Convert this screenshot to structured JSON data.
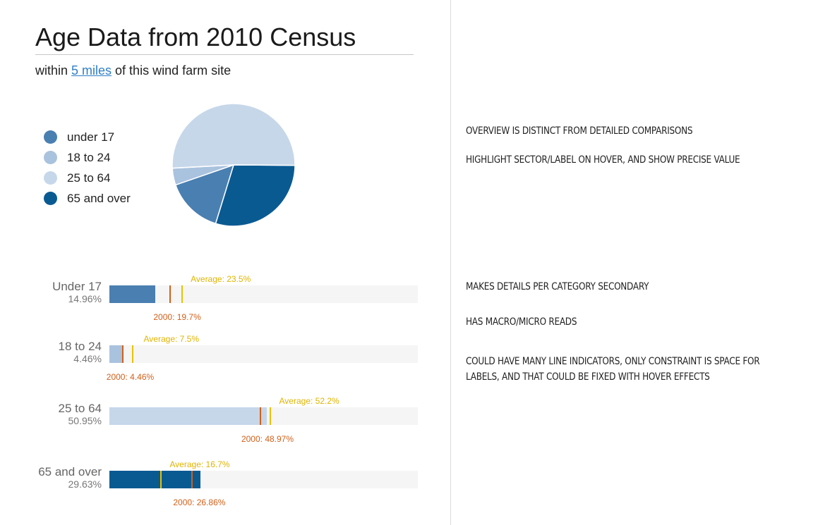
{
  "title": "Age Data from 2010 Census",
  "subtitle": {
    "prefix": "within ",
    "link": "5 miles",
    "suffix": " of this wind farm site"
  },
  "colors": {
    "under_17": "#4a7fb1",
    "18_to_24": "#a9c2de",
    "25_to_64": "#c7d7ea",
    "65_and_over": "#0a5a92",
    "average_marker": "#e8c200",
    "year2000_marker": "#d2601a"
  },
  "chart_data": [
    {
      "type": "pie",
      "title": "",
      "legend": "left",
      "categories": [
        "under 17",
        "18 to 24",
        "25 to 64",
        "65 and over"
      ],
      "values": [
        14.96,
        4.46,
        50.95,
        29.63
      ],
      "colors": [
        "#4a7fb1",
        "#a9c2de",
        "#c7d7ea",
        "#0a5a92"
      ]
    },
    {
      "type": "bar",
      "title": "",
      "xlim": [
        0,
        100
      ],
      "categories": [
        "Under 17",
        "18 to 24",
        "25 to 64",
        "65 and over"
      ],
      "values": [
        14.96,
        4.46,
        50.95,
        29.63
      ],
      "value_labels": [
        "14.96%",
        "4.46%",
        "50.95%",
        "29.63%"
      ],
      "average": [
        23.5,
        7.5,
        52.2,
        16.7
      ],
      "average_labels": [
        "Average: 23.5%",
        "Average: 7.5%",
        "Average: 52.2%",
        "Average: 16.7%"
      ],
      "year2000": [
        19.7,
        4.46,
        48.97,
        26.86
      ],
      "year2000_labels": [
        "2000: 19.7%",
        "2000: 4.46%",
        "2000: 48.97%",
        "2000: 26.86%"
      ],
      "colors": [
        "#4a7fb1",
        "#a9c2de",
        "#c7d7ea",
        "#0a5a92"
      ]
    }
  ],
  "notes": [
    "OVERVIEW IS DISTINCT FROM DETAILED COMPARISONS",
    "HIGHLIGHT SECTOR/LABEL ON HOVER, AND SHOW PRECISE VALUE",
    "MAKES DETAILS PER CATEGORY SECONDARY",
    "HAS MACRO/MICRO READS",
    "COULD HAVE MANY LINE INDICATORS, ONLY CONSTRAINT IS SPACE FOR LABELS, AND THAT COULD BE FIXED WITH HOVER EFFECTS"
  ]
}
